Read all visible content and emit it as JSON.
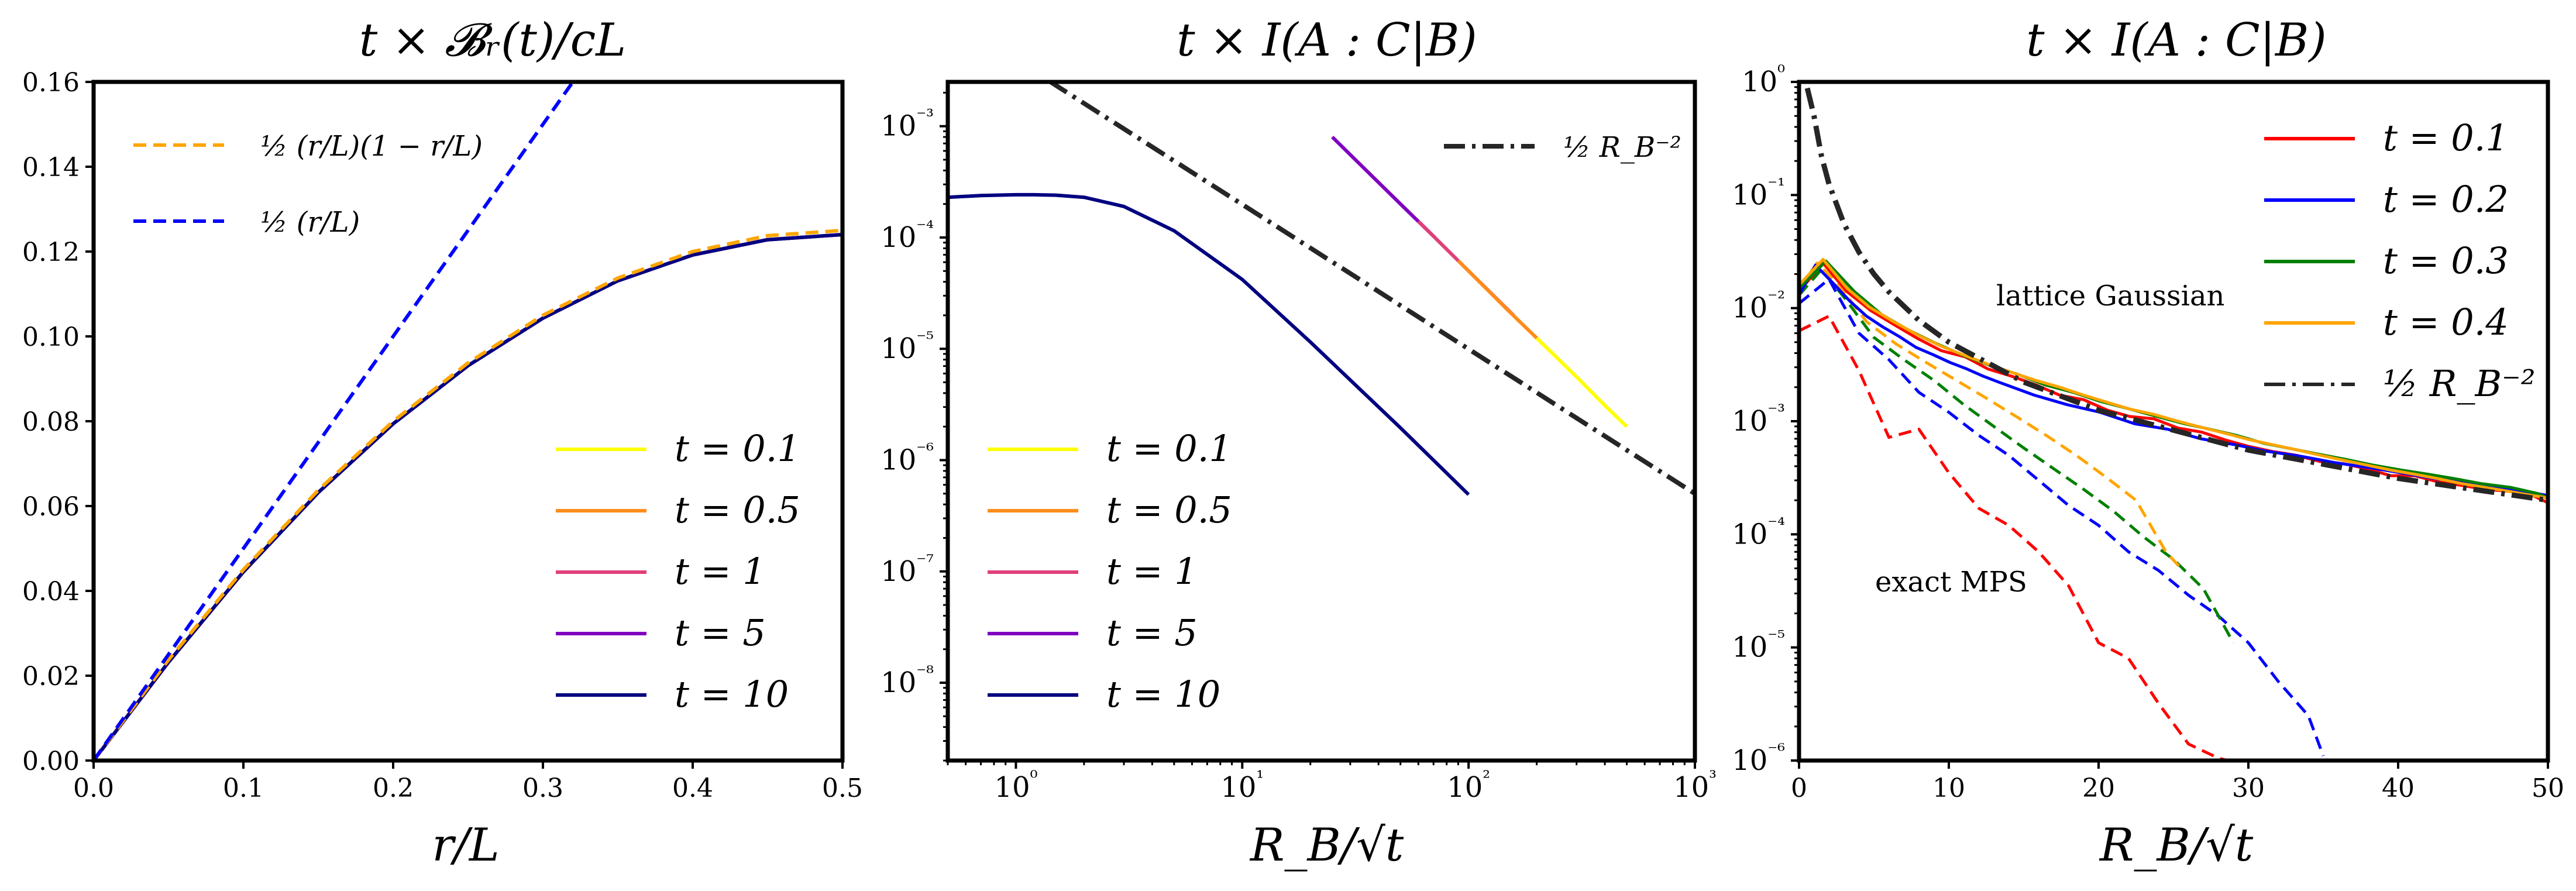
{
  "chart_data": [
    {
      "type": "line",
      "title": "t × 𝓑ᵣ(t)/cL",
      "xlabel": "r/L",
      "ylabel": "",
      "xlim": [
        0,
        0.5
      ],
      "ylim": [
        0,
        0.16
      ],
      "xscale": "linear",
      "yscale": "linear",
      "xticks": [
        "0.0",
        "0.1",
        "0.2",
        "0.3",
        "0.4",
        "0.5"
      ],
      "yticks": [
        "0.00",
        "0.02",
        "0.04",
        "0.06",
        "0.08",
        "0.10",
        "0.12",
        "0.14",
        "0.16"
      ],
      "legend_top": [
        {
          "label": "½ (r/L)(1 − r/L)",
          "color": "#ffa500",
          "style": "dashed"
        },
        {
          "label": "½ (r/L)",
          "color": "#0000ff",
          "style": "dashed"
        }
      ],
      "legend_bottom_position": "lower-right",
      "series": [
        {
          "name": "t = 0.1",
          "color": "#ffff00",
          "style": "solid",
          "curve": "r(1-r)/2"
        },
        {
          "name": "t = 0.5",
          "color": "#ff8c1a",
          "style": "solid",
          "curve": "r(1-r)/2"
        },
        {
          "name": "t = 1",
          "color": "#e0407a",
          "style": "solid",
          "curve": "r(1-r)/2"
        },
        {
          "name": "t = 5",
          "color": "#8000c0",
          "style": "solid",
          "curve": "r(1-r)/2"
        },
        {
          "name": "t = 10",
          "color": "#000080",
          "style": "solid",
          "curve": "r(1-r)/2"
        }
      ],
      "reference_curves": [
        {
          "label": "½ (r/L)(1 − r/L)",
          "color": "#ffa500",
          "style": "dashed",
          "x": [
            0,
            0.05,
            0.1,
            0.15,
            0.2,
            0.25,
            0.3,
            0.35,
            0.4,
            0.45,
            0.5
          ],
          "y": [
            0,
            0.02375,
            0.045,
            0.06375,
            0.08,
            0.09375,
            0.105,
            0.11375,
            0.12,
            0.12375,
            0.125
          ]
        },
        {
          "label": "½ (r/L)",
          "color": "#0000ff",
          "style": "dashed",
          "x": [
            0,
            0.322
          ],
          "y": [
            0,
            0.161
          ]
        }
      ],
      "data_curve": {
        "x": [
          0,
          0.05,
          0.1,
          0.15,
          0.2,
          0.25,
          0.3,
          0.35,
          0.4,
          0.45,
          0.5
        ],
        "y": [
          0,
          0.0232,
          0.0445,
          0.0632,
          0.0794,
          0.0931,
          0.1043,
          0.1131,
          0.1192,
          0.1228,
          0.124
        ]
      }
    },
    {
      "type": "line",
      "title": "t × I(A : C|B)",
      "xlabel": "R_B/√t",
      "ylabel": "",
      "xlim": [
        0.5,
        1000
      ],
      "ylim": [
        2e-09,
        0.0025
      ],
      "xscale": "log",
      "yscale": "log",
      "xticks": [
        "10⁰",
        "10¹",
        "10²",
        "10³"
      ],
      "yticks": [
        "10⁻⁸",
        "10⁻⁷",
        "10⁻⁶",
        "10⁻⁵",
        "10⁻⁴",
        "10⁻³"
      ],
      "legend_top": [
        {
          "label": "½ R_B⁻²",
          "color": "#262626",
          "style": "dashdot"
        }
      ],
      "legend_bottom_position": "lower-left",
      "series": [
        {
          "name": "t = 0.1",
          "color": "#ffff00",
          "style": "solid",
          "x": [
            200,
            300,
            400,
            500
          ],
          "y": [
            1.25e-05,
            5.6e-06,
            3.1e-06,
            2e-06
          ]
        },
        {
          "name": "t = 0.5",
          "color": "#ff8c1a",
          "style": "solid",
          "x": [
            90,
            150,
            224
          ],
          "y": [
            6.2e-05,
            2.2e-05,
            1e-05
          ]
        },
        {
          "name": "t = 1",
          "color": "#e0407a",
          "style": "solid",
          "x": [
            60,
            100,
            158
          ],
          "y": [
            0.00014,
            5e-05,
            2e-05
          ]
        },
        {
          "name": "t = 5",
          "color": "#8000c0",
          "style": "solid",
          "x": [
            25,
            50,
            71
          ],
          "y": [
            0.0008,
            0.0002,
            0.0001
          ]
        },
        {
          "name": "t = 10",
          "color": "#000080",
          "style": "solid",
          "x": [
            0.5,
            0.7,
            1,
            1.2,
            1.5,
            2,
            3,
            5,
            10,
            20,
            50,
            100
          ],
          "y": [
            0.00023,
            0.000238,
            0.000242,
            0.000242,
            0.00024,
            0.00023,
            0.00019,
            0.000115,
            4.2e-05,
            1.15e-05,
            1.95e-06,
            4.9e-07
          ]
        }
      ],
      "reference_curves": [
        {
          "label": "½ R_B⁻²",
          "color": "#262626",
          "style": "dashdot",
          "x": [
            1.4,
            1000
          ],
          "y": [
            0.00255,
            5e-07
          ]
        }
      ]
    },
    {
      "type": "line",
      "title": "t × I(A : C|B)",
      "xlabel": "R_B/√t",
      "ylabel": "",
      "xlim": [
        0,
        50
      ],
      "ylim": [
        1e-06,
        1
      ],
      "xscale": "linear",
      "yscale": "log",
      "xticks": [
        "0",
        "10",
        "20",
        "30",
        "40",
        "50"
      ],
      "yticks": [
        "10⁻⁶",
        "10⁻⁵",
        "10⁻⁴",
        "10⁻³",
        "10⁻²",
        "10⁻¹",
        "10⁰"
      ],
      "legend_position": "upper-right",
      "annotations": [
        "lattice Gaussian",
        "exact MPS"
      ],
      "series": [
        {
          "name": "t = 0.1",
          "color": "#ff0000",
          "style": "solid",
          "x": [
            0,
            1.6,
            3.2,
            4.8,
            6.3,
            7.9,
            9.5,
            11.1,
            12.6,
            14.2,
            15.8,
            17.4,
            19,
            20.6,
            22.1,
            23.7,
            25.3,
            26.9,
            28.5,
            30,
            31.6,
            33.2,
            34.8,
            36.4,
            37.9,
            39.5,
            41.1,
            42.7,
            44.3,
            45.8,
            47.4,
            49,
            50
          ],
          "y": [
            0.014,
            0.025,
            0.014,
            0.0095,
            0.0072,
            0.0054,
            0.0042,
            0.0037,
            0.0029,
            0.0025,
            0.0021,
            0.0017,
            0.00155,
            0.00125,
            0.0011,
            0.00105,
            0.00087,
            0.0008,
            0.00068,
            0.0006,
            0.00054,
            0.0005,
            0.00044,
            0.00042,
            0.00038,
            0.00033,
            0.00033,
            0.00029,
            0.00027,
            0.00025,
            0.00024,
            0.00022,
            0.00019
          ]
        },
        {
          "name": "t = 0.2",
          "color": "#0000ff",
          "style": "solid",
          "x": [
            0,
            1.1,
            2.2,
            3.4,
            4.5,
            5.6,
            6.7,
            7.8,
            8.9,
            10.1,
            11.2,
            12.3,
            13.4,
            15.7,
            17.9,
            20.1,
            22.4,
            24.6,
            26.8,
            29.1,
            31.3,
            33.5,
            35.8,
            38,
            40.2,
            42.5,
            44.7,
            46.9,
            49.2,
            50
          ],
          "y": [
            0.013,
            0.024,
            0.017,
            0.0115,
            0.0085,
            0.0068,
            0.0056,
            0.0045,
            0.0039,
            0.0033,
            0.0029,
            0.0025,
            0.0022,
            0.0017,
            0.0014,
            0.0012,
            0.00095,
            0.00085,
            0.0007,
            0.00062,
            0.00054,
            0.00049,
            0.00043,
            0.00039,
            0.00035,
            0.00031,
            0.00029,
            0.00026,
            0.00023,
            0.00022
          ]
        },
        {
          "name": "t = 0.3",
          "color": "#008000",
          "style": "solid",
          "x": [
            0,
            1.8,
            3.7,
            5.5,
            7.3,
            9.1,
            11,
            12.8,
            14.6,
            16.4,
            18.3,
            20.1,
            21.9,
            23.7,
            25.6,
            27.4,
            29.2,
            31,
            32.9,
            34.7,
            36.5,
            38.3,
            40.2,
            42,
            43.8,
            45.6,
            47.5,
            49.3,
            50
          ],
          "y": [
            0.015,
            0.026,
            0.014,
            0.0088,
            0.0064,
            0.0049,
            0.0038,
            0.0031,
            0.0026,
            0.0021,
            0.0018,
            0.0015,
            0.0013,
            0.00112,
            0.00096,
            0.00085,
            0.00075,
            0.00064,
            0.00057,
            0.00051,
            0.00046,
            0.00041,
            0.00037,
            0.00034,
            0.00031,
            0.00028,
            0.00026,
            0.00023,
            0.00021
          ]
        },
        {
          "name": "t = 0.4",
          "color": "#ffa500",
          "style": "solid",
          "x": [
            0,
            1.6,
            3.2,
            4.7,
            6.3,
            7.9,
            9.5,
            11.1,
            12.6,
            14.2,
            15.8,
            17.4,
            19,
            20.5,
            22.1,
            23.7,
            25.3,
            26.9,
            28.5,
            30,
            31.6,
            33.2,
            34.8,
            36.4,
            37.9,
            39.5,
            41.1,
            42.7,
            44.3,
            45.8,
            47.4,
            49,
            50
          ],
          "y": [
            0.016,
            0.027,
            0.015,
            0.0102,
            0.0076,
            0.0058,
            0.0046,
            0.0038,
            0.0032,
            0.0027,
            0.0023,
            0.002,
            0.0017,
            0.00148,
            0.00128,
            0.00115,
            0.001,
            0.00088,
            0.00078,
            0.00069,
            0.00062,
            0.00056,
            0.0005,
            0.00045,
            0.00041,
            0.00037,
            0.00034,
            0.00031,
            0.00028,
            0.00026,
            0.00024,
            0.00022,
            0.00021
          ]
        }
      ],
      "mps_curves": [
        {
          "color": "#ff0000",
          "style": "dashed",
          "x": [
            0,
            2,
            4,
            6,
            8,
            10,
            12,
            14,
            16,
            18,
            20,
            22,
            24,
            26,
            28,
            30
          ],
          "y": [
            0.0063,
            0.0085,
            0.0028,
            0.00072,
            0.00085,
            0.00035,
            0.00017,
            0.00012,
            7e-05,
            3.5e-05,
            1.1e-05,
            8e-06,
            3.2e-06,
            1.4e-06,
            1.05e-06,
            9e-07
          ]
        },
        {
          "color": "#0000ff",
          "style": "dashed",
          "x": [
            0,
            2,
            4,
            6,
            8,
            10,
            12,
            14,
            16,
            18,
            20,
            22,
            24,
            26,
            28,
            30,
            32,
            34,
            35
          ],
          "y": [
            0.011,
            0.018,
            0.006,
            0.0035,
            0.0018,
            0.0012,
            0.00075,
            0.0005,
            0.0003,
            0.00018,
            0.00012,
            7e-05,
            4.8e-05,
            2.9e-05,
            1.9e-05,
            1.1e-05,
            5e-06,
            2.5e-06,
            1.1e-06
          ]
        },
        {
          "color": "#008000",
          "style": "dashed",
          "x": [
            0,
            1.5,
            3,
            5,
            7,
            9,
            11,
            13,
            15,
            17,
            19,
            21,
            23,
            25,
            27,
            29
          ],
          "y": [
            0.013,
            0.022,
            0.0125,
            0.0055,
            0.0035,
            0.0023,
            0.0014,
            0.0009,
            0.00058,
            0.00038,
            0.00025,
            0.00016,
            9.5e-05,
            6e-05,
            3.3e-05,
            1.1e-05
          ]
        },
        {
          "color": "#ffa500",
          "style": "dashed",
          "x": [
            0,
            1.2,
            2.5,
            4.5,
            6.5,
            8.5,
            10.5,
            12.5,
            14.5,
            16.5,
            18.5,
            20.5,
            22.5,
            24.5,
            25.5
          ],
          "y": [
            0.015,
            0.025,
            0.017,
            0.0076,
            0.0048,
            0.0033,
            0.0023,
            0.0016,
            0.0011,
            0.00075,
            0.0005,
            0.00032,
            0.0002,
            7e-05,
            5e-05
          ]
        }
      ],
      "reference_curves": [
        {
          "label": "½ R_B⁻²",
          "color": "#262626",
          "style": "dashdot",
          "x": [
            0.55,
            1,
            1.5,
            2,
            3,
            4,
            5,
            6,
            8,
            10,
            15,
            20,
            30,
            40,
            50
          ],
          "y": [
            0.88,
            0.5,
            0.22,
            0.125,
            0.0556,
            0.03125,
            0.02,
            0.0139,
            0.0078,
            0.005,
            0.00222,
            0.00125,
            0.000556,
            0.0003125,
            0.0002
          ]
        }
      ]
    }
  ]
}
